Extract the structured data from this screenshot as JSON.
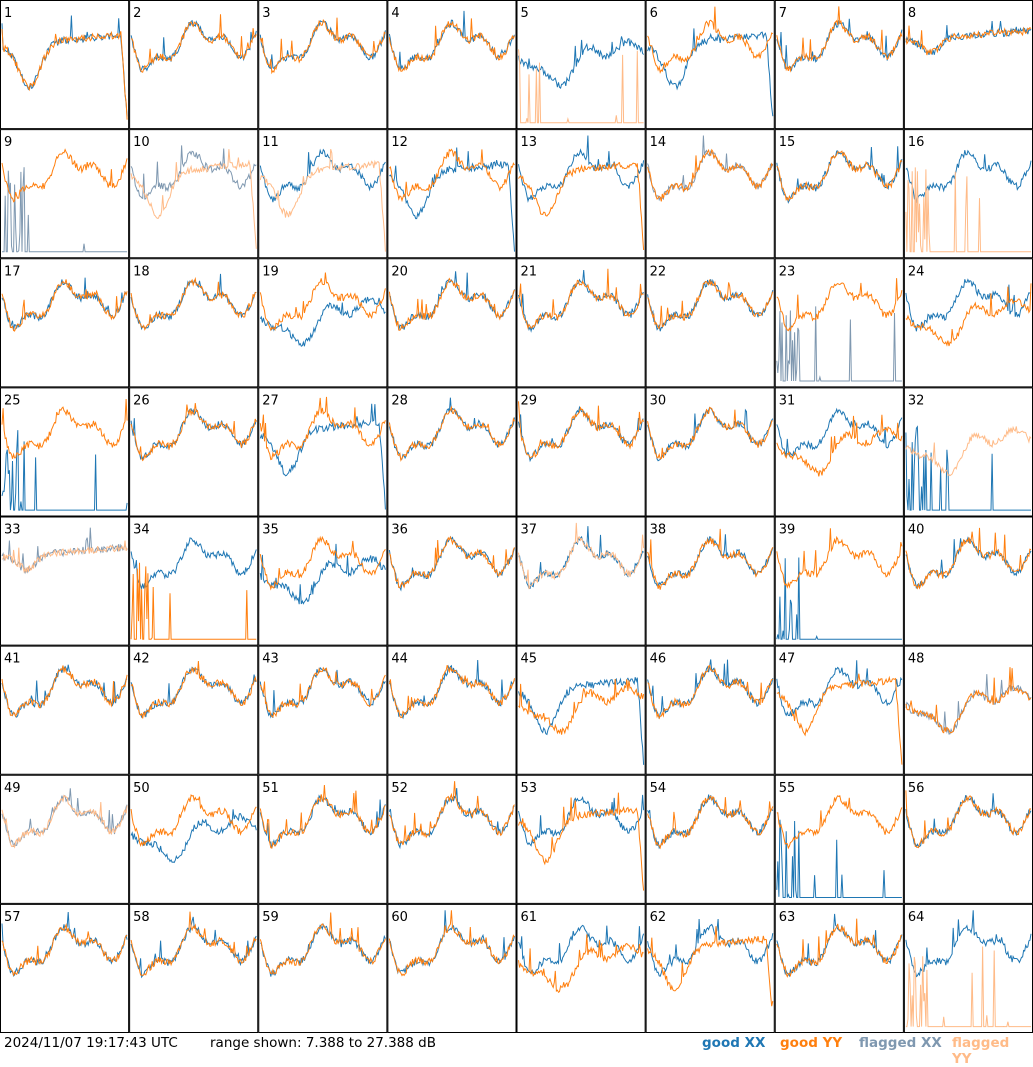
{
  "colors": {
    "good_xx": "#1f77b4",
    "good_yy": "#ff7f0e",
    "flagged_xx": "#7f98b0",
    "flagged_yy": "#ffbb88"
  },
  "footer": {
    "timestamp": "2024/11/07 19:17:43 UTC",
    "range_text": "range shown: 7.388 to 27.388 dB",
    "legend": {
      "good_xx": "good XX",
      "good_yy": "good YY",
      "flagged_xx": "flagged XX",
      "flagged_yy": "flagged YY"
    }
  },
  "chart_data": {
    "type": "line",
    "layout": "8x8 small multiples",
    "y_range_db": [
      7.388,
      27.388
    ],
    "panels": [
      {
        "label": "1",
        "xx": "good",
        "yy": "good",
        "xx_profile": "dip",
        "yy_profile": "dip"
      },
      {
        "label": "2",
        "xx": "good",
        "yy": "good",
        "xx_profile": "normal",
        "yy_profile": "normal"
      },
      {
        "label": "3",
        "xx": "good",
        "yy": "good",
        "xx_profile": "normal",
        "yy_profile": "normal"
      },
      {
        "label": "4",
        "xx": "good",
        "yy": "good",
        "xx_profile": "normal",
        "yy_profile": "normal"
      },
      {
        "label": "5",
        "xx": "good",
        "yy": "flagged",
        "xx_profile": "lowmid",
        "yy_profile": "spikes"
      },
      {
        "label": "6",
        "xx": "good",
        "yy": "good",
        "xx_profile": "dip",
        "yy_profile": "normal"
      },
      {
        "label": "7",
        "xx": "good",
        "yy": "good",
        "xx_profile": "normal",
        "yy_profile": "normal"
      },
      {
        "label": "8",
        "xx": "good",
        "yy": "good",
        "xx_profile": "flat",
        "yy_profile": "flat"
      },
      {
        "label": "9",
        "xx": "flagged",
        "yy": "good",
        "xx_profile": "spikes",
        "yy_profile": "normal"
      },
      {
        "label": "10",
        "xx": "flagged",
        "yy": "flagged",
        "xx_profile": "normal",
        "yy_profile": "dip"
      },
      {
        "label": "11",
        "xx": "good",
        "yy": "flagged",
        "xx_profile": "normal",
        "yy_profile": "dip"
      },
      {
        "label": "12",
        "xx": "good",
        "yy": "good",
        "xx_profile": "dip",
        "yy_profile": "normal"
      },
      {
        "label": "13",
        "xx": "good",
        "yy": "good",
        "xx_profile": "normal",
        "yy_profile": "dip"
      },
      {
        "label": "14",
        "xx": "flagged",
        "yy": "good",
        "xx_profile": "normal",
        "yy_profile": "normal"
      },
      {
        "label": "15",
        "xx": "good",
        "yy": "good",
        "xx_profile": "normal",
        "yy_profile": "normal"
      },
      {
        "label": "16",
        "xx": "good",
        "yy": "flagged",
        "xx_profile": "normal",
        "yy_profile": "spikes"
      },
      {
        "label": "17",
        "xx": "good",
        "yy": "good",
        "xx_profile": "normal",
        "yy_profile": "normal"
      },
      {
        "label": "18",
        "xx": "good",
        "yy": "good",
        "xx_profile": "normal",
        "yy_profile": "normal"
      },
      {
        "label": "19",
        "xx": "good",
        "yy": "good",
        "xx_profile": "lowmid",
        "yy_profile": "normal"
      },
      {
        "label": "20",
        "xx": "good",
        "yy": "good",
        "xx_profile": "normal",
        "yy_profile": "normal"
      },
      {
        "label": "21",
        "xx": "good",
        "yy": "good",
        "xx_profile": "normal",
        "yy_profile": "normal"
      },
      {
        "label": "22",
        "xx": "good",
        "yy": "good",
        "xx_profile": "normal",
        "yy_profile": "normal"
      },
      {
        "label": "23",
        "xx": "flagged",
        "yy": "good",
        "xx_profile": "spikes",
        "yy_profile": "normal"
      },
      {
        "label": "24",
        "xx": "good",
        "yy": "good",
        "xx_profile": "normal",
        "yy_profile": "lowmid"
      },
      {
        "label": "25",
        "xx": "good",
        "yy": "good",
        "xx_profile": "spikes",
        "yy_profile": "normal"
      },
      {
        "label": "26",
        "xx": "good",
        "yy": "good",
        "xx_profile": "normal",
        "yy_profile": "normal"
      },
      {
        "label": "27",
        "xx": "good",
        "yy": "good",
        "xx_profile": "dip",
        "yy_profile": "normal"
      },
      {
        "label": "28",
        "xx": "good",
        "yy": "good",
        "xx_profile": "normal",
        "yy_profile": "normal"
      },
      {
        "label": "29",
        "xx": "good",
        "yy": "good",
        "xx_profile": "normal",
        "yy_profile": "normal"
      },
      {
        "label": "30",
        "xx": "good",
        "yy": "good",
        "xx_profile": "normal",
        "yy_profile": "normal"
      },
      {
        "label": "31",
        "xx": "good",
        "yy": "good",
        "xx_profile": "normal",
        "yy_profile": "lowmid"
      },
      {
        "label": "32",
        "xx": "good",
        "yy": "flagged",
        "xx_profile": "spikes",
        "yy_profile": "lowmid"
      },
      {
        "label": "33",
        "xx": "flagged",
        "yy": "flagged",
        "xx_profile": "flat",
        "yy_profile": "flat"
      },
      {
        "label": "34",
        "xx": "good",
        "yy": "good",
        "xx_profile": "normal",
        "yy_profile": "spikes"
      },
      {
        "label": "35",
        "xx": "good",
        "yy": "good",
        "xx_profile": "lowmid",
        "yy_profile": "normal"
      },
      {
        "label": "36",
        "xx": "good",
        "yy": "good",
        "xx_profile": "normal",
        "yy_profile": "normal"
      },
      {
        "label": "37",
        "xx": "good",
        "yy": "flagged",
        "xx_profile": "normal",
        "yy_profile": "normal"
      },
      {
        "label": "38",
        "xx": "good",
        "yy": "good",
        "xx_profile": "normal",
        "yy_profile": "normal"
      },
      {
        "label": "39",
        "xx": "good",
        "yy": "good",
        "xx_profile": "spikes",
        "yy_profile": "normal"
      },
      {
        "label": "40",
        "xx": "good",
        "yy": "good",
        "xx_profile": "normal",
        "yy_profile": "normal"
      },
      {
        "label": "41",
        "xx": "good",
        "yy": "good",
        "xx_profile": "normal",
        "yy_profile": "normal"
      },
      {
        "label": "42",
        "xx": "good",
        "yy": "good",
        "xx_profile": "normal",
        "yy_profile": "normal"
      },
      {
        "label": "43",
        "xx": "good",
        "yy": "good",
        "xx_profile": "normal",
        "yy_profile": "normal"
      },
      {
        "label": "44",
        "xx": "good",
        "yy": "good",
        "xx_profile": "normal",
        "yy_profile": "normal"
      },
      {
        "label": "45",
        "xx": "good",
        "yy": "good",
        "xx_profile": "dip",
        "yy_profile": "lowmid"
      },
      {
        "label": "46",
        "xx": "good",
        "yy": "good",
        "xx_profile": "normal",
        "yy_profile": "normal"
      },
      {
        "label": "47",
        "xx": "good",
        "yy": "good",
        "xx_profile": "normal",
        "yy_profile": "dip"
      },
      {
        "label": "48",
        "xx": "flagged",
        "yy": "good",
        "xx_profile": "lowmid",
        "yy_profile": "lowmid"
      },
      {
        "label": "49",
        "xx": "flagged",
        "yy": "flagged",
        "xx_profile": "normal",
        "yy_profile": "normal"
      },
      {
        "label": "50",
        "xx": "good",
        "yy": "good",
        "xx_profile": "lowmid",
        "yy_profile": "normal"
      },
      {
        "label": "51",
        "xx": "good",
        "yy": "good",
        "xx_profile": "normal",
        "yy_profile": "normal"
      },
      {
        "label": "52",
        "xx": "good",
        "yy": "good",
        "xx_profile": "normal",
        "yy_profile": "normal"
      },
      {
        "label": "53",
        "xx": "good",
        "yy": "good",
        "xx_profile": "normal",
        "yy_profile": "dip"
      },
      {
        "label": "54",
        "xx": "good",
        "yy": "good",
        "xx_profile": "normal",
        "yy_profile": "normal"
      },
      {
        "label": "55",
        "xx": "good",
        "yy": "good",
        "xx_profile": "spikes",
        "yy_profile": "normal"
      },
      {
        "label": "56",
        "xx": "good",
        "yy": "good",
        "xx_profile": "normal",
        "yy_profile": "normal"
      },
      {
        "label": "57",
        "xx": "good",
        "yy": "good",
        "xx_profile": "normal",
        "yy_profile": "normal"
      },
      {
        "label": "58",
        "xx": "good",
        "yy": "good",
        "xx_profile": "normal",
        "yy_profile": "normal"
      },
      {
        "label": "59",
        "xx": "good",
        "yy": "good",
        "xx_profile": "normal",
        "yy_profile": "normal"
      },
      {
        "label": "60",
        "xx": "good",
        "yy": "good",
        "xx_profile": "normal",
        "yy_profile": "normal"
      },
      {
        "label": "61",
        "xx": "good",
        "yy": "good",
        "xx_profile": "normal",
        "yy_profile": "lowmid"
      },
      {
        "label": "62",
        "xx": "good",
        "yy": "good",
        "xx_profile": "normal",
        "yy_profile": "dip"
      },
      {
        "label": "63",
        "xx": "good",
        "yy": "good",
        "xx_profile": "normal",
        "yy_profile": "normal"
      },
      {
        "label": "64",
        "xx": "good",
        "yy": "flagged",
        "xx_profile": "normal",
        "yy_profile": "spikes"
      }
    ]
  }
}
